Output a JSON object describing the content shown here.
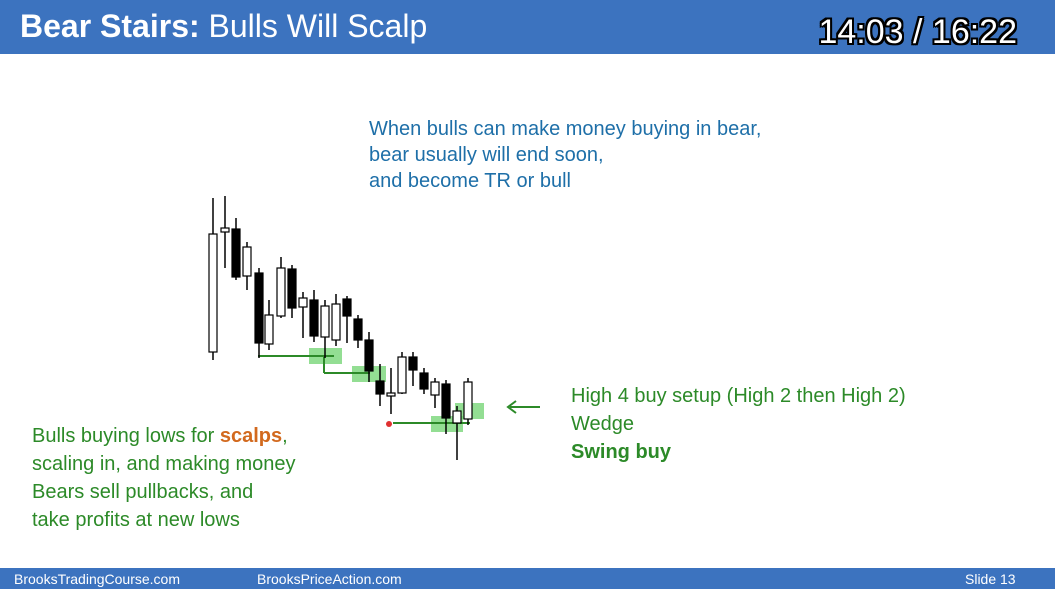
{
  "header": {
    "title_bold": "Bear Stairs:",
    "title_rest": "Bulls Will Scalp",
    "timer": "14:03 / 16:22"
  },
  "notes": {
    "top": [
      "When bulls can make money buying in bear,",
      "bear usually will end soon,",
      "and become TR or bull"
    ],
    "left": {
      "line1_prefix": "Bulls buying lows for ",
      "line1_highlight": "scalps",
      "line1_suffix": ",",
      "line2": "scaling in, and making money",
      "line3": "Bears sell pullbacks, and",
      "line4": "take profits at new lows"
    },
    "right": {
      "line1": "High 4 buy setup (High 2 then High 2)",
      "line2": "Wedge",
      "line3": "Swing buy"
    }
  },
  "footer": {
    "site1": "BrooksTradingCourse.com",
    "site2": "BrooksPriceAction.com",
    "slide": "Slide  13"
  },
  "colors": {
    "title_bar": "#3c73bf",
    "note_blue": "#1e6fa8",
    "note_green": "#2c8a28",
    "scalps_orange": "#d2691e",
    "highlight_green": "#6fd36f"
  }
}
